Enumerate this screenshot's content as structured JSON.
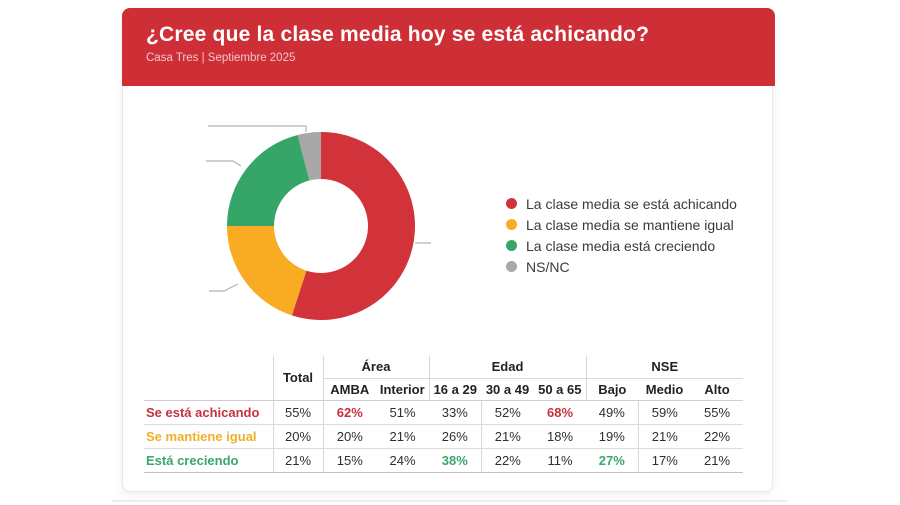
{
  "header": {
    "title": "¿Cree que la clase media hoy se está achicando?",
    "subtitle": "Casa Tres | Septiembre 2025"
  },
  "colors": {
    "header_bg": "#ce2f36",
    "red": "#d2333b",
    "yellow": "#f8ab23",
    "green": "#35a568",
    "gray": "#a8a8a8",
    "table_red": "#c5333e",
    "table_yellow": "#f0af2b",
    "table_green": "#3aa76d"
  },
  "chart_data": {
    "type": "pie",
    "donut": true,
    "title": "¿Cree que la clase media hoy se está achicando?",
    "legend_position": "right",
    "segments": [
      {
        "key": "achicando",
        "label": "La clase media se está achicando",
        "value": 55,
        "color": "#d2333b"
      },
      {
        "key": "igual",
        "label": "La clase media se mantiene igual",
        "value": 20,
        "color": "#f8ab23"
      },
      {
        "key": "creciendo",
        "label": "La clase media está creciendo",
        "value": 21,
        "color": "#35a568"
      },
      {
        "key": "nsnc",
        "label": "NS/NC",
        "value": 4,
        "color": "#a8a8a8"
      }
    ]
  },
  "table": {
    "corner_label": "",
    "total_header": "Total",
    "groups": [
      {
        "label": "Área",
        "span": 2
      },
      {
        "label": "Edad",
        "span": 3
      },
      {
        "label": "NSE",
        "span": 3
      }
    ],
    "sub_headers": [
      "AMBA",
      "Interior",
      "16 a 29",
      "30 a 49",
      "50 a 65",
      "Bajo",
      "Medio",
      "Alto"
    ],
    "rows": [
      {
        "label": "Se está achicando",
        "color": "#c5333e",
        "values": [
          "55%",
          "62%",
          "51%",
          "33%",
          "52%",
          "68%",
          "49%",
          "59%",
          "55%"
        ],
        "highlights": {
          "1": "#c5333e",
          "5": "#c5333e"
        }
      },
      {
        "label": "Se mantiene igual",
        "color": "#f0af2b",
        "values": [
          "20%",
          "20%",
          "21%",
          "26%",
          "21%",
          "18%",
          "19%",
          "21%",
          "22%"
        ],
        "highlights": {}
      },
      {
        "label": "Está creciendo",
        "color": "#3aa76d",
        "values": [
          "21%",
          "15%",
          "24%",
          "38%",
          "22%",
          "11%",
          "27%",
          "17%",
          "21%"
        ],
        "highlights": {
          "3": "#3aa76d",
          "6": "#3aa76d"
        }
      }
    ]
  }
}
